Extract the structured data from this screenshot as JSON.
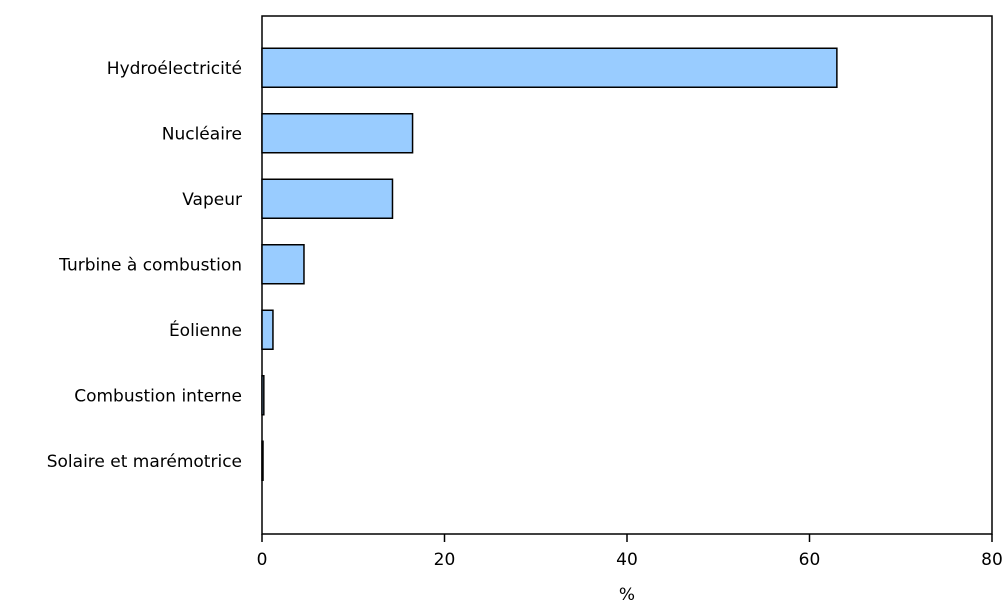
{
  "chart_data": {
    "type": "bar",
    "orientation": "horizontal",
    "categories": [
      "Hydroélectricité",
      "Nucléaire",
      "Vapeur",
      "Turbine à combustion",
      "Éolienne",
      "Combustion interne",
      "Solaire et marémotrice"
    ],
    "values": [
      63.0,
      16.5,
      14.3,
      4.6,
      1.2,
      0.2,
      0.1
    ],
    "title": "",
    "xlabel": "%",
    "ylabel": "",
    "xlim": [
      0,
      80
    ],
    "xticks": [
      "0",
      "20",
      "40",
      "60",
      "80"
    ],
    "grid": false,
    "legend": "none",
    "colors": {
      "bar_fill": "#99ccff",
      "bar_stroke": "#000000",
      "axis": "#000000"
    }
  }
}
